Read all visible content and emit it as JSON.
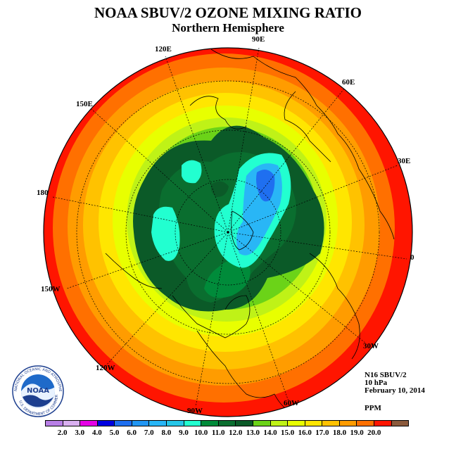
{
  "title": "NOAA SBUV/2 OZONE MIXING RATIO",
  "subtitle": "Northern Hemisphere",
  "longitudes": {
    "e90": "90E",
    "e120": "120E",
    "e60": "60E",
    "e150": "150E",
    "e30": "30E",
    "d180": "180",
    "d0": "0",
    "w150": "150W",
    "w30": "30W",
    "w120": "120W",
    "w60": "60W",
    "w90": "90W"
  },
  "info": {
    "instrument": "N16 SBUV/2",
    "level": "10 hPa",
    "date": "February 10, 2014",
    "units": "PPM"
  },
  "logo": {
    "text": "NOAA",
    "ring_top": "NATIONAL OCEANIC AND ATMOSPHERIC ADMINISTRATION",
    "ring_bottom": "U.S. DEPARTMENT OF COMMERCE"
  },
  "colorbar": {
    "colors": [
      "#b87fe6",
      "#d9b0f0",
      "#e600e6",
      "#0000e0",
      "#1f6ff0",
      "#2196f3",
      "#29b6f6",
      "#26c6e8",
      "#22ffd0",
      "#008b3a",
      "#0a6e2f",
      "#0b5a28",
      "#6bd318",
      "#bff217",
      "#e8ff00",
      "#ffe600",
      "#ffc200",
      "#ff9c00",
      "#ff7000",
      "#ff1500",
      "#8b5a3c"
    ],
    "ticks": [
      "2.0",
      "3.0",
      "4.0",
      "5.0",
      "6.0",
      "7.0",
      "8.0",
      "9.0",
      "10.0",
      "11.0",
      "12.0",
      "13.0",
      "14.0",
      "15.0",
      "16.0",
      "17.0",
      "18.0",
      "19.0",
      "20.0"
    ]
  },
  "map_colors": {
    "outer": "#ff1500",
    "c19": "#ff7000",
    "c18": "#ff9c00",
    "c17": "#ffc200",
    "c16": "#ffe600",
    "c15": "#e8ff00",
    "c14": "#bff217",
    "c13": "#6bd318",
    "c12": "#0b5a28",
    "c11": "#0a6e2f",
    "c10": "#008b3a",
    "cyan": "#22ffd0",
    "lightblue": "#29b6f6",
    "blue": "#1f6ff0"
  }
}
